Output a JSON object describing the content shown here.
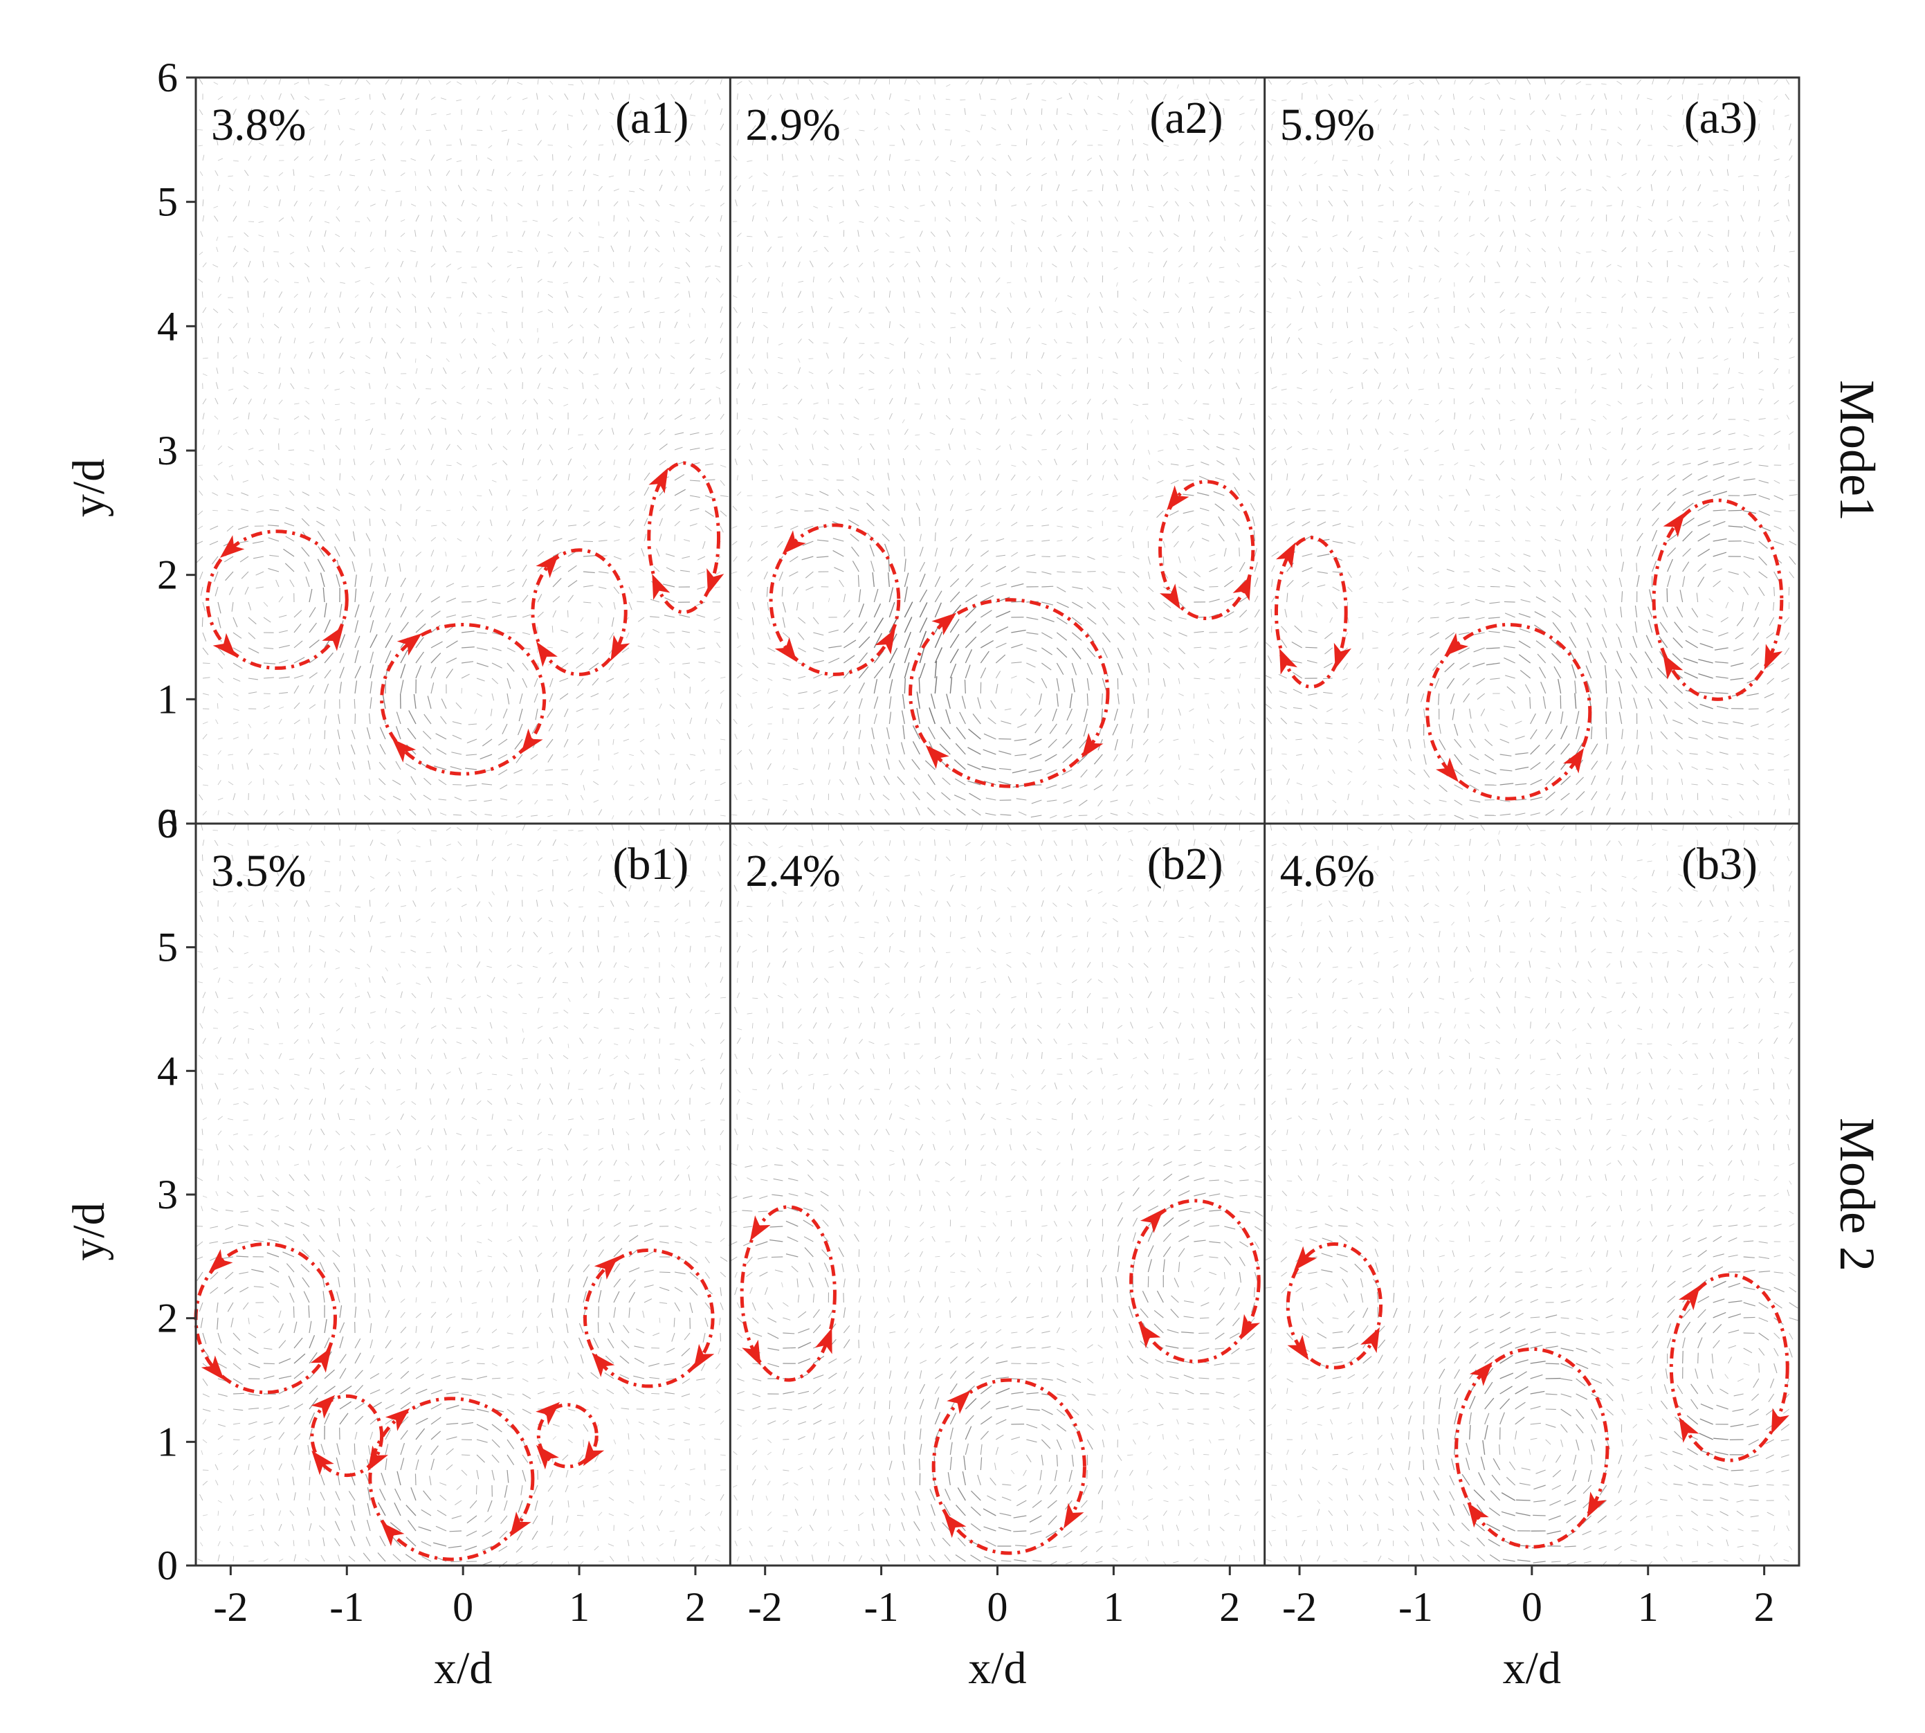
{
  "chart_data": {
    "type": "quiver",
    "title": "",
    "xlabel": "x/d",
    "ylabel": "y/d",
    "xlim": [
      -2.3,
      2.3
    ],
    "ylim": [
      0,
      6
    ],
    "xticks": [
      -2,
      -1,
      0,
      1,
      2
    ],
    "yticks": [
      0,
      1,
      2,
      3,
      4,
      5,
      6
    ],
    "rows": [
      {
        "label": "Mode1"
      },
      {
        "label": "Mode 2"
      }
    ],
    "panels": [
      {
        "id": "(a1)",
        "energy": "3.8%",
        "row": 0,
        "col": 0,
        "vortices": [
          {
            "cx": -1.6,
            "cy": 1.8,
            "rx": 0.6,
            "ry": 0.55,
            "dir": "ccw"
          },
          {
            "cx": 0.0,
            "cy": 1.0,
            "rx": 0.7,
            "ry": 0.6,
            "dir": "cw"
          },
          {
            "cx": 1.0,
            "cy": 1.7,
            "rx": 0.4,
            "ry": 0.5,
            "dir": "cw"
          },
          {
            "cx": 1.9,
            "cy": 2.3,
            "rx": 0.3,
            "ry": 0.6,
            "dir": "cw"
          }
        ]
      },
      {
        "id": "(a2)",
        "energy": "2.9%",
        "row": 0,
        "col": 1,
        "vortices": [
          {
            "cx": -1.4,
            "cy": 1.8,
            "rx": 0.55,
            "ry": 0.6,
            "dir": "ccw"
          },
          {
            "cx": 0.1,
            "cy": 1.05,
            "rx": 0.85,
            "ry": 0.75,
            "dir": "cw"
          },
          {
            "cx": 1.8,
            "cy": 2.2,
            "rx": 0.4,
            "ry": 0.55,
            "dir": "ccw"
          }
        ]
      },
      {
        "id": "(a3)",
        "energy": "5.9%",
        "row": 0,
        "col": 2,
        "vortices": [
          {
            "cx": -1.9,
            "cy": 1.7,
            "rx": 0.3,
            "ry": 0.6,
            "dir": "cw"
          },
          {
            "cx": -0.2,
            "cy": 0.9,
            "rx": 0.7,
            "ry": 0.7,
            "dir": "ccw"
          },
          {
            "cx": 1.6,
            "cy": 1.8,
            "rx": 0.55,
            "ry": 0.8,
            "dir": "cw"
          }
        ]
      },
      {
        "id": "(b1)",
        "energy": "3.5%",
        "row": 1,
        "col": 0,
        "vortices": [
          {
            "cx": -1.7,
            "cy": 2.0,
            "rx": 0.6,
            "ry": 0.6,
            "dir": "ccw"
          },
          {
            "cx": -1.0,
            "cy": 1.05,
            "rx": 0.3,
            "ry": 0.32,
            "dir": "cw"
          },
          {
            "cx": -0.1,
            "cy": 0.7,
            "rx": 0.7,
            "ry": 0.65,
            "dir": "cw"
          },
          {
            "cx": 0.9,
            "cy": 1.05,
            "rx": 0.25,
            "ry": 0.25,
            "dir": "cw"
          },
          {
            "cx": 1.6,
            "cy": 2.0,
            "rx": 0.55,
            "ry": 0.55,
            "dir": "cw"
          }
        ]
      },
      {
        "id": "(b2)",
        "energy": "2.4%",
        "row": 1,
        "col": 1,
        "vortices": [
          {
            "cx": -1.8,
            "cy": 2.2,
            "rx": 0.4,
            "ry": 0.7,
            "dir": "ccw"
          },
          {
            "cx": 0.1,
            "cy": 0.8,
            "rx": 0.65,
            "ry": 0.7,
            "dir": "cw"
          },
          {
            "cx": 1.7,
            "cy": 2.3,
            "rx": 0.55,
            "ry": 0.65,
            "dir": "cw"
          }
        ]
      },
      {
        "id": "(b3)",
        "energy": "4.6%",
        "row": 1,
        "col": 2,
        "vortices": [
          {
            "cx": -1.7,
            "cy": 2.1,
            "rx": 0.4,
            "ry": 0.5,
            "dir": "ccw"
          },
          {
            "cx": 0.0,
            "cy": 0.95,
            "rx": 0.65,
            "ry": 0.8,
            "dir": "cw"
          },
          {
            "cx": 1.7,
            "cy": 1.6,
            "rx": 0.5,
            "ry": 0.75,
            "dir": "cw"
          }
        ]
      }
    ]
  }
}
